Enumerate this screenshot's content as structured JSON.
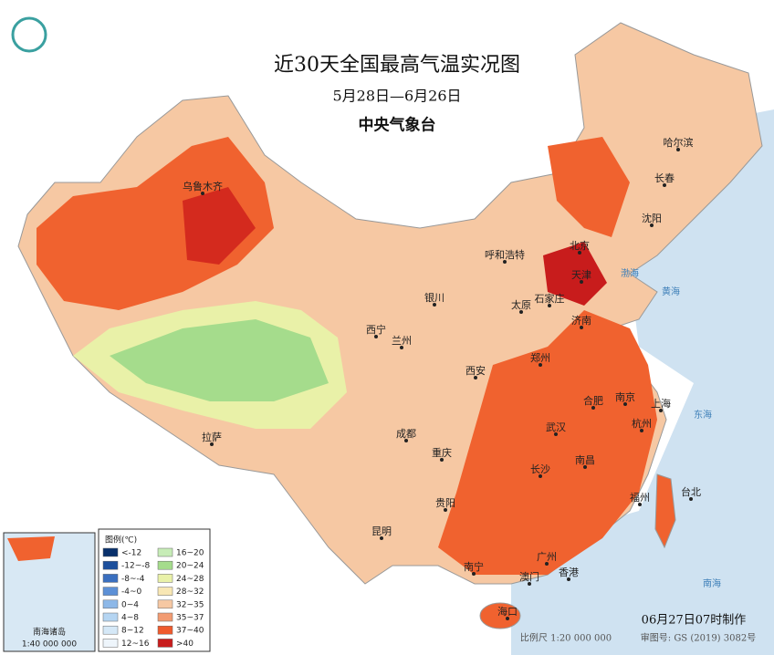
{
  "header": {
    "title": "近30天全国最高气温实况图",
    "subtitle": "5月28日—6月26日",
    "agency": "中央气象台"
  },
  "cities": [
    "乌鲁木齐",
    "呼和浩特",
    "哈尔滨",
    "长春",
    "沈阳",
    "北京",
    "天津",
    "石家庄",
    "太原",
    "银川",
    "西宁",
    "兰州",
    "济南",
    "郑州",
    "西安",
    "合肥",
    "南京",
    "上海",
    "杭州",
    "武汉",
    "成都",
    "重庆",
    "拉萨",
    "长沙",
    "南昌",
    "福州",
    "台北",
    "贵阳",
    "昆明",
    "南宁",
    "广州",
    "澳门",
    "香港",
    "海口"
  ],
  "seas": [
    "渤海",
    "黄海",
    "东海",
    "南海"
  ],
  "legend": {
    "title": "图例(℃)",
    "items": [
      {
        "label": "<-12",
        "color": "#08306b"
      },
      {
        "label": "-12~-8",
        "color": "#1c4f9c"
      },
      {
        "label": "-8~-4",
        "color": "#3a6fbf"
      },
      {
        "label": "-4~0",
        "color": "#5d90d6"
      },
      {
        "label": "0~4",
        "color": "#8db8e8"
      },
      {
        "label": "4~8",
        "color": "#b5d5f2"
      },
      {
        "label": "8~12",
        "color": "#d5e8f7"
      },
      {
        "label": "12~16",
        "color": "#eef5fb"
      },
      {
        "label": "16~20",
        "color": "#c7ecb7"
      },
      {
        "label": "20~24",
        "color": "#a5dc8c"
      },
      {
        "label": "24~28",
        "color": "#e9f1a8"
      },
      {
        "label": "28~32",
        "color": "#f8e7b4"
      },
      {
        "label": "32~35",
        "color": "#f6c8a3"
      },
      {
        "label": "35~37",
        "color": "#f29b72"
      },
      {
        "label": "37~40",
        "color": "#ef5a2d"
      },
      {
        "label": ">40",
        "color": "#c81c1c"
      }
    ]
  },
  "inset": {
    "label": "南海诸岛",
    "scale": "1:40 000 000"
  },
  "footer": {
    "made": "06月27日07时制作",
    "scale": "比例尺 1:20 000 000",
    "approval": "审图号: GS (2019) 3082号"
  }
}
